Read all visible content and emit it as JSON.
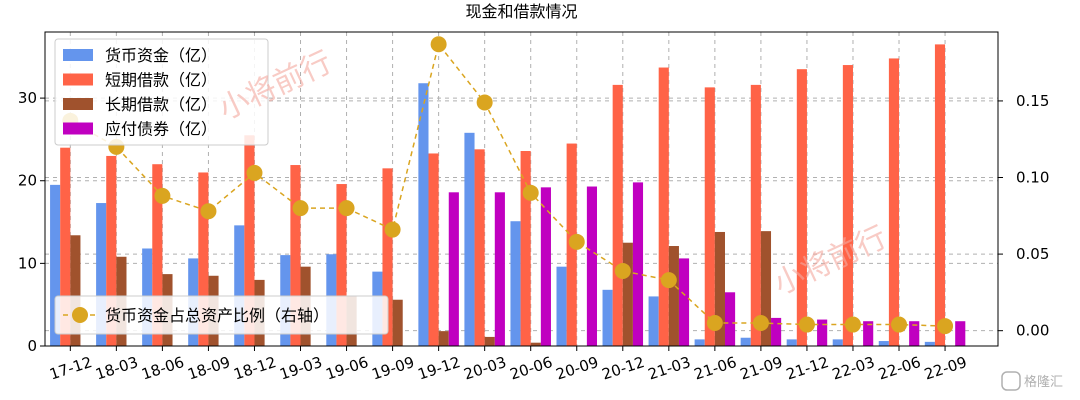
{
  "chart_data": {
    "type": "bar",
    "title": "现金和借款情况",
    "categories": [
      "17-12",
      "18-03",
      "18-06",
      "18-09",
      "18-12",
      "19-03",
      "19-06",
      "19-09",
      "19-12",
      "20-03",
      "20-06",
      "20-09",
      "20-12",
      "21-03",
      "21-06",
      "21-09",
      "21-12",
      "22-03",
      "22-06",
      "22-09"
    ],
    "ylim": [
      0,
      38
    ],
    "y_ticks": [
      0,
      10,
      20,
      30
    ],
    "y2lim": [
      -0.01,
      0.195
    ],
    "y2_ticks": [
      0.0,
      0.05,
      0.1,
      0.15
    ],
    "y2_tick_labels": [
      "0.00",
      "0.05",
      "0.10",
      "0.15"
    ],
    "grid": true,
    "series": [
      {
        "name": "货币资金（亿）",
        "color": "#6495ED",
        "values": [
          19.5,
          17.3,
          11.8,
          10.6,
          14.6,
          11.0,
          11.1,
          9.0,
          31.8,
          25.8,
          15.1,
          9.6,
          6.8,
          6.0,
          0.8,
          1.0,
          0.8,
          0.8,
          0.6,
          0.5
        ]
      },
      {
        "name": "短期借款（亿）",
        "color": "#FF6347",
        "values": [
          24.0,
          23.0,
          22.0,
          21.0,
          25.5,
          21.9,
          19.6,
          21.5,
          23.3,
          23.8,
          23.6,
          24.5,
          31.6,
          33.7,
          31.3,
          31.6,
          33.5,
          34.0,
          34.8,
          36.5
        ]
      },
      {
        "name": "长期借款（亿）",
        "color": "#A0522D",
        "values": [
          13.4,
          10.8,
          8.7,
          8.5,
          8.0,
          9.6,
          6.0,
          5.6,
          1.8,
          1.1,
          0.4,
          0.0,
          12.5,
          12.1,
          13.8,
          13.9,
          0.0,
          0.0,
          0.0,
          0.0
        ]
      },
      {
        "name": "应付债券（亿）",
        "color": "#C000C0",
        "values": [
          0,
          0,
          0,
          0,
          0,
          0,
          0,
          0,
          18.6,
          18.6,
          19.2,
          19.3,
          19.8,
          10.6,
          6.5,
          3.4,
          3.2,
          3.0,
          3.0,
          3.0
        ]
      },
      {
        "name": "货币资金占总资产比例（右轴）",
        "type": "line",
        "axis": "right",
        "color": "#DAA520",
        "values": [
          0.137,
          0.12,
          0.088,
          0.078,
          0.103,
          0.08,
          0.08,
          0.066,
          0.187,
          0.149,
          0.09,
          0.058,
          0.039,
          0.033,
          0.005,
          0.005,
          0.004,
          0.004,
          0.004,
          0.003
        ]
      }
    ],
    "legend_upper": [
      "货币资金（亿）",
      "短期借款（亿）",
      "长期借款（亿）",
      "应付债券（亿）"
    ],
    "legend_lower": [
      "货币资金占总资产比例（右轴）"
    ],
    "legend_placement": "top-left and bottom-left",
    "watermark": "小将前行",
    "brand": "格隆汇"
  }
}
